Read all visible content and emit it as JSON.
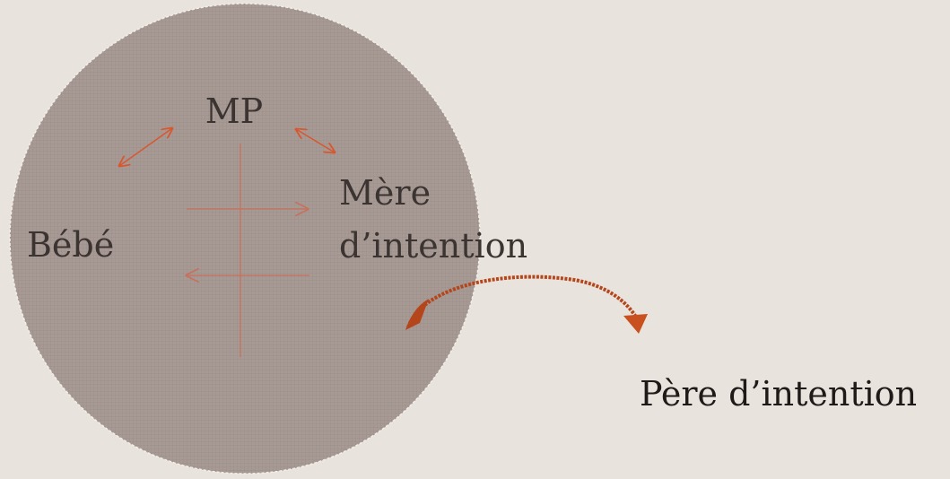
{
  "nodes": [
    {
      "label": "MP"
    },
    {
      "label": "Bébé"
    },
    {
      "label": "Mère d’intention"
    },
    {
      "label": "Père d’intention"
    }
  ]
}
